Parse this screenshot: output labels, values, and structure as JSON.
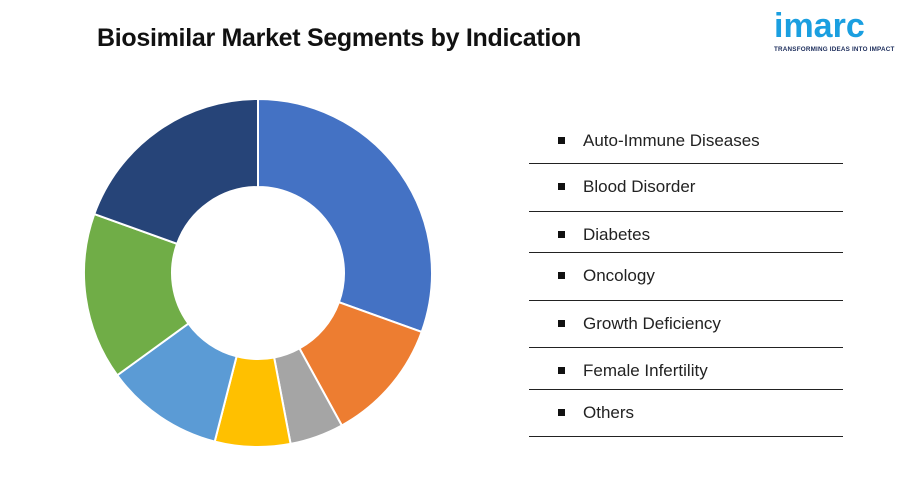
{
  "title": "Biosimilar Market Segments by Indication",
  "logo": {
    "wordmark": "imarc",
    "tagline": "TRANSFORMING IDEAS INTO IMPACT",
    "color": "#1a9fe0"
  },
  "chart_data": {
    "type": "pie",
    "subtype": "donut",
    "title": "Biosimilar Market Segments by Indication",
    "categories": [
      "Auto-Immune Diseases",
      "Blood Disorder",
      "Diabetes",
      "Oncology",
      "Growth Deficiency",
      "Female Infertility",
      "Others"
    ],
    "values": [
      30.5,
      11.5,
      5.0,
      7.0,
      11.0,
      15.5,
      19.5
    ],
    "colors": [
      "#4472c4",
      "#ed7d31",
      "#a5a5a5",
      "#ffc000",
      "#5b9bd5",
      "#70ad47",
      "#264478"
    ],
    "legend_position": "right",
    "data_labels": false
  }
}
